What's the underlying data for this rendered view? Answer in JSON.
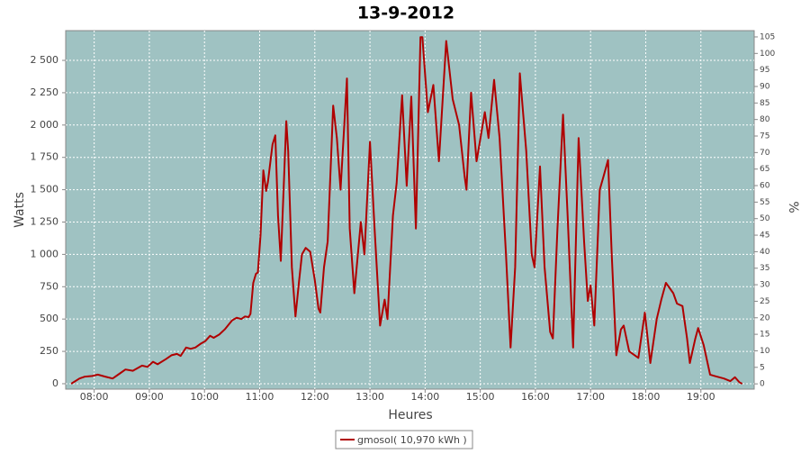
{
  "chart_data": {
    "type": "line",
    "title": "13-9-2012",
    "x_label": "Heures",
    "y_label": "Watts",
    "y2_label": "%",
    "xlim": [
      "07:29",
      "19:58"
    ],
    "xticks": [
      "08:00",
      "09:00",
      "10:00",
      "11:00",
      "12:00",
      "13:00",
      "14:00",
      "15:00",
      "16:00",
      "17:00",
      "18:00",
      "19:00"
    ],
    "ylim": [
      -42,
      2730
    ],
    "yticks": [
      0,
      250,
      500,
      750,
      {
        "value": 1000,
        "label": "1 000"
      },
      {
        "value": 1250,
        "label": "1 250"
      },
      {
        "value": 1500,
        "label": "1 500"
      },
      {
        "value": 1750,
        "label": "1 750"
      },
      {
        "value": 2000,
        "label": "2 000"
      },
      {
        "value": 2250,
        "label": "2 250"
      },
      {
        "value": 2500,
        "label": "2 500"
      }
    ],
    "y2lim": [
      -1.6,
      106.9
    ],
    "y2ticks": [
      0,
      5,
      10,
      15,
      20,
      25,
      30,
      35,
      40,
      45,
      50,
      55,
      60,
      65,
      70,
      75,
      80,
      85,
      90,
      95,
      100,
      105
    ],
    "grid": true,
    "plot_background": "#9fc2c2",
    "x": [
      "07:35",
      "07:44",
      "07:50",
      "07:58",
      "08:04",
      "08:12",
      "08:20",
      "08:28",
      "08:34",
      "08:42",
      "08:52",
      "08:58",
      "09:04",
      "09:09",
      "09:18",
      "09:24",
      "09:30",
      "09:34",
      "09:40",
      "09:45",
      "09:50",
      "09:56",
      "10:01",
      "10:06",
      "10:10",
      "10:16",
      "10:22",
      "10:30",
      "10:35",
      "10:40",
      "10:44",
      "10:48",
      "10:50",
      "10:53",
      "10:56",
      "10:58",
      "11:01",
      "11:04",
      "11:07",
      "11:09",
      "11:14",
      "11:17",
      "11:20",
      "11:23",
      "11:29",
      "11:31",
      "11:35",
      "11:39",
      "11:43",
      "11:46",
      "11:50",
      "11:55",
      "12:00",
      "12:04",
      "12:06",
      "12:10",
      "12:14",
      "12:20",
      "12:24",
      "12:28",
      "12:35",
      "12:38",
      "12:43",
      "12:50",
      "12:54",
      "13:00",
      "13:05",
      "13:11",
      "13:16",
      "13:19",
      "13:25",
      "13:29",
      "13:35",
      "13:40",
      "13:45",
      "13:50",
      "13:55",
      "13:57",
      "14:03",
      "14:09",
      "14:15",
      "14:23",
      "14:30",
      "14:37",
      "14:43",
      "14:45",
      "14:50",
      "14:56",
      "15:05",
      "15:09",
      "15:15",
      "15:21",
      "15:28",
      "15:33",
      "15:38",
      "15:43",
      "15:50",
      "15:56",
      "15:59",
      "16:05",
      "16:10",
      "16:16",
      "16:19",
      "16:24",
      "16:30",
      "16:35",
      "16:41",
      "16:47",
      "16:53",
      "16:57",
      "17:00",
      "17:04",
      "17:10",
      "17:14",
      "17:19",
      "17:23",
      "17:28",
      "17:33",
      "17:36",
      "17:42",
      "17:52",
      "17:59",
      "18:05",
      "18:12",
      "18:17",
      "18:22",
      "18:30",
      "18:34",
      "18:40",
      "18:45",
      "18:48",
      "18:54",
      "18:57",
      "19:03",
      "19:10",
      "19:15",
      "19:25",
      "19:32",
      "19:37",
      "19:42",
      "19:45"
    ],
    "series": [
      {
        "name": "gmosol( 10,970 kWh )",
        "color": "#b00000",
        "values": [
          0,
          40,
          55,
          60,
          70,
          55,
          40,
          80,
          110,
          100,
          140,
          130,
          170,
          150,
          190,
          220,
          230,
          215,
          280,
          270,
          280,
          310,
          330,
          370,
          355,
          380,
          420,
          490,
          510,
          500,
          520,
          515,
          540,
          780,
          850,
          860,
          1150,
          1650,
          1490,
          1560,
          1850,
          1920,
          1300,
          950,
          2030,
          1800,
          900,
          520,
          800,
          1000,
          1050,
          1020,
          800,
          580,
          550,
          900,
          1100,
          2150,
          1900,
          1500,
          2360,
          1200,
          700,
          1250,
          1000,
          1870,
          1200,
          450,
          650,
          500,
          1300,
          1550,
          2230,
          1530,
          2220,
          1200,
          2680,
          2680,
          2100,
          2310,
          1720,
          2650,
          2200,
          2000,
          1600,
          1500,
          2250,
          1720,
          2100,
          1900,
          2350,
          1900,
          1000,
          280,
          900,
          2400,
          1800,
          1000,
          900,
          1680,
          900,
          400,
          350,
          1200,
          2080,
          1300,
          280,
          1900,
          1100,
          640,
          760,
          450,
          1500,
          1600,
          1730,
          1000,
          220,
          420,
          450,
          250,
          200,
          550,
          160,
          500,
          650,
          780,
          700,
          620,
          600,
          350,
          160,
          350,
          430,
          300,
          70,
          60,
          40,
          20,
          50,
          10,
          0
        ]
      }
    ]
  }
}
